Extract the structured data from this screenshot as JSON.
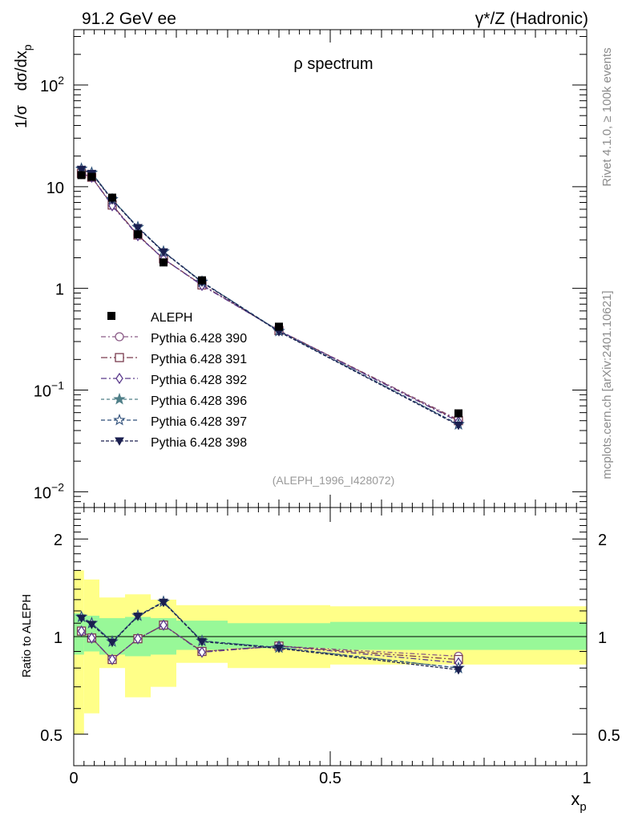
{
  "header": {
    "left": "91.2 GeV ee",
    "right": "γ*/Z (Hadronic)"
  },
  "side_labels": {
    "rivet": "Rivet 4.1.0, ≥ 100k events",
    "mcplots": "mcplots.cern.ch [arXiv:2401.10621]"
  },
  "chart_data": [
    {
      "type": "line",
      "title": "ρ spectrum",
      "ylabel": "1/σ dσ/dx_p",
      "ylabel_parts": {
        "a": "1/σ",
        "b": "dσ/dx",
        "sub": "p"
      },
      "xlabel": "",
      "yscale": "log",
      "ylim": [
        0.007,
        350
      ],
      "xlim": [
        0,
        1
      ],
      "yticks": [
        {
          "v": 0.01,
          "base": "10",
          "exp": "−2"
        },
        {
          "v": 0.1,
          "base": "10",
          "exp": "−1"
        },
        {
          "v": 1,
          "base": "1",
          "exp": ""
        },
        {
          "v": 10,
          "base": "10",
          "exp": ""
        },
        {
          "v": 100,
          "base": "10",
          "exp": "2"
        }
      ],
      "watermark": "(ALEPH_1996_I428072)",
      "legend_position": "center-left",
      "x": [
        0.015,
        0.035,
        0.075,
        0.125,
        0.175,
        0.25,
        0.4,
        0.75
      ],
      "reference": {
        "name": "ALEPH",
        "values": [
          13.0,
          12.5,
          7.8,
          3.4,
          1.8,
          1.2,
          0.42,
          0.059
        ]
      },
      "series": [
        {
          "name": "Pythia 6.428 390",
          "marker": "circle-open",
          "color": "#8a5a86",
          "values": [
            13.5,
            12.4,
            6.6,
            3.35,
            1.95,
            1.08,
            0.385,
            0.051
          ]
        },
        {
          "name": "Pythia 6.428 391",
          "marker": "square-open",
          "color": "#7a3b4e",
          "values": [
            13.5,
            12.4,
            6.6,
            3.35,
            1.95,
            1.08,
            0.385,
            0.05
          ]
        },
        {
          "name": "Pythia 6.428 392",
          "marker": "diamond-open",
          "color": "#5b3a8c",
          "values": [
            13.5,
            12.4,
            6.5,
            3.3,
            1.95,
            1.07,
            0.385,
            0.049
          ]
        },
        {
          "name": "Pythia 6.428 396",
          "marker": "star-filled",
          "color": "#4f7f88",
          "values": [
            15.0,
            13.7,
            7.5,
            4.0,
            2.3,
            1.16,
            0.38,
            0.046
          ]
        },
        {
          "name": "Pythia 6.428 397",
          "marker": "star-open",
          "color": "#2f4f7a",
          "values": [
            15.0,
            13.7,
            7.5,
            4.0,
            2.3,
            1.16,
            0.38,
            0.046
          ]
        },
        {
          "name": "Pythia 6.428 398",
          "marker": "triangle-down-filled",
          "color": "#1a1f4f",
          "values": [
            14.8,
            13.5,
            7.4,
            3.95,
            2.28,
            1.15,
            0.375,
            0.045
          ]
        }
      ]
    },
    {
      "type": "line",
      "title": "",
      "ylabel": "Ratio to ALEPH",
      "xlabel": "x_p",
      "xlabel_parts": {
        "base": "x",
        "sub": "p"
      },
      "yscale": "log",
      "ylim": [
        0.4,
        2.5
      ],
      "xlim": [
        0,
        1
      ],
      "xticks": [
        {
          "v": 0,
          "label": "0"
        },
        {
          "v": 0.5,
          "label": "0.5"
        },
        {
          "v": 1,
          "label": "1"
        }
      ],
      "yticks": [
        {
          "v": 0.5,
          "label": "0.5"
        },
        {
          "v": 1,
          "label": "1"
        },
        {
          "v": 2,
          "label": "2"
        }
      ],
      "bins": [
        0,
        0.02,
        0.05,
        0.1,
        0.15,
        0.2,
        0.3,
        0.5,
        1.0
      ],
      "band_stat": [
        [
          0.88,
          1.18
        ],
        [
          0.9,
          1.16
        ],
        [
          0.88,
          1.14
        ],
        [
          0.87,
          1.15
        ],
        [
          0.88,
          1.14
        ],
        [
          0.91,
          1.12
        ],
        [
          0.92,
          1.1
        ],
        [
          0.91,
          1.11
        ]
      ],
      "band_total": [
        [
          0.5,
          1.6
        ],
        [
          0.58,
          1.5
        ],
        [
          0.8,
          1.32
        ],
        [
          0.65,
          1.35
        ],
        [
          0.7,
          1.3
        ],
        [
          0.83,
          1.25
        ],
        [
          0.8,
          1.25
        ],
        [
          0.82,
          1.24
        ]
      ],
      "x": [
        0.015,
        0.035,
        0.075,
        0.125,
        0.175,
        0.25,
        0.4,
        0.75
      ],
      "series": [
        {
          "name": "Pythia 6.428 390",
          "values": [
            1.04,
            0.99,
            0.85,
            0.985,
            1.085,
            0.9,
            0.935,
            0.87
          ]
        },
        {
          "name": "Pythia 6.428 391",
          "values": [
            1.04,
            0.99,
            0.85,
            0.985,
            1.085,
            0.9,
            0.935,
            0.85
          ]
        },
        {
          "name": "Pythia 6.428 392",
          "values": [
            1.04,
            0.99,
            0.85,
            0.985,
            1.085,
            0.895,
            0.935,
            0.83
          ]
        },
        {
          "name": "Pythia 6.428 396",
          "values": [
            1.15,
            1.1,
            0.965,
            1.16,
            1.28,
            0.97,
            0.925,
            0.8
          ]
        },
        {
          "name": "Pythia 6.428 397",
          "values": [
            1.15,
            1.1,
            0.965,
            1.16,
            1.28,
            0.97,
            0.925,
            0.8
          ]
        },
        {
          "name": "Pythia 6.428 398",
          "values": [
            1.14,
            1.09,
            0.96,
            1.155,
            1.275,
            0.965,
            0.92,
            0.79
          ]
        }
      ]
    }
  ]
}
